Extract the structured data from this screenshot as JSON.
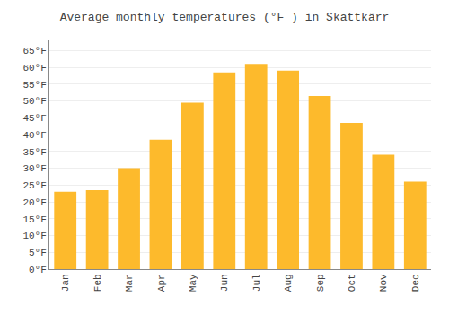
{
  "chart_data": {
    "type": "bar",
    "title": "Average monthly temperatures (°F ) in Skattkärr",
    "categories": [
      "Jan",
      "Feb",
      "Mar",
      "Apr",
      "May",
      "Jun",
      "Jul",
      "Aug",
      "Sep",
      "Oct",
      "Nov",
      "Dec"
    ],
    "values": [
      23,
      23.5,
      30,
      38.5,
      49.5,
      58.5,
      61,
      59,
      51.5,
      43.5,
      34,
      26
    ],
    "color": "#FDBA2C",
    "ylim": [
      0,
      68
    ],
    "yticks": [
      {
        "value": 0,
        "label": "0°F"
      },
      {
        "value": 5,
        "label": "5°F"
      },
      {
        "value": 10,
        "label": "10°F"
      },
      {
        "value": 15,
        "label": "15°F"
      },
      {
        "value": 20,
        "label": "20°F"
      },
      {
        "value": 25,
        "label": "25°F"
      },
      {
        "value": 30,
        "label": "30°F"
      },
      {
        "value": 35,
        "label": "35°F"
      },
      {
        "value": 40,
        "label": "40°F"
      },
      {
        "value": 45,
        "label": "45°F"
      },
      {
        "value": 50,
        "label": "50°F"
      },
      {
        "value": 55,
        "label": "55°F"
      },
      {
        "value": 60,
        "label": "60°F"
      },
      {
        "value": 65,
        "label": "65°F"
      }
    ],
    "grid": true
  }
}
